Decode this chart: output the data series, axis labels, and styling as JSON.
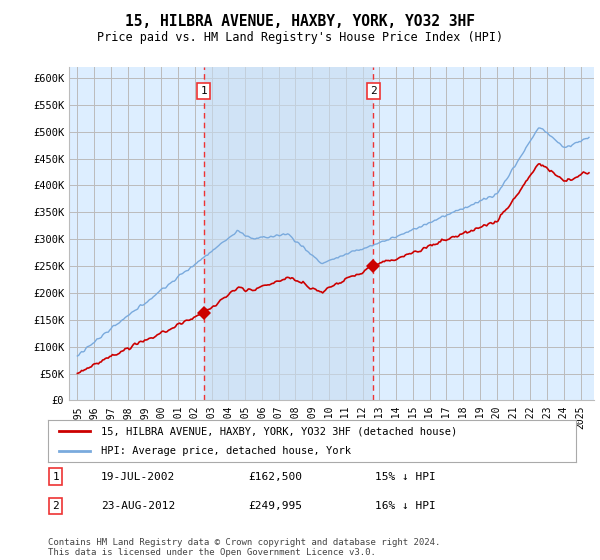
{
  "title": "15, HILBRA AVENUE, HAXBY, YORK, YO32 3HF",
  "subtitle": "Price paid vs. HM Land Registry's House Price Index (HPI)",
  "property_label": "15, HILBRA AVENUE, HAXBY, YORK, YO32 3HF (detached house)",
  "hpi_label": "HPI: Average price, detached house, York",
  "footnote": "Contains HM Land Registry data © Crown copyright and database right 2024.\nThis data is licensed under the Open Government Licence v3.0.",
  "sale1_date": "19-JUL-2002",
  "sale1_price": 162500,
  "sale1_label": "£162,500",
  "sale1_pct": "15% ↓ HPI",
  "sale2_date": "23-AUG-2012",
  "sale2_price": 249995,
  "sale2_label": "£249,995",
  "sale2_pct": "16% ↓ HPI",
  "sale1_year": 2002.54,
  "sale2_year": 2012.64,
  "hpi_color": "#7aaadd",
  "price_color": "#cc0000",
  "dashed_color": "#ee3333",
  "bg_color": "#ddeeff",
  "shade_color": "#ddeeff",
  "grid_color": "#bbbbbb",
  "ylim_min": 0,
  "ylim_max": 620000,
  "ytick_vals": [
    0,
    50000,
    100000,
    150000,
    200000,
    250000,
    300000,
    350000,
    400000,
    450000,
    500000,
    550000,
    600000
  ],
  "ytick_labels": [
    "£0",
    "£50K",
    "£100K",
    "£150K",
    "£200K",
    "£250K",
    "£300K",
    "£350K",
    "£400K",
    "£450K",
    "£500K",
    "£550K",
    "£600K"
  ],
  "xmin": 1994.5,
  "xmax": 2025.8,
  "xtick_vals": [
    1995,
    1996,
    1997,
    1998,
    1999,
    2000,
    2001,
    2002,
    2003,
    2004,
    2005,
    2006,
    2007,
    2008,
    2009,
    2010,
    2011,
    2012,
    2013,
    2014,
    2015,
    2016,
    2017,
    2018,
    2019,
    2020,
    2021,
    2022,
    2023,
    2024,
    2025
  ],
  "xtick_labels": [
    "1995",
    "1996",
    "1997",
    "1998",
    "1999",
    "2000",
    "2001",
    "2002",
    "2003",
    "2004",
    "2005",
    "2006",
    "2007",
    "2008",
    "2009",
    "2010",
    "2011",
    "2012",
    "2013",
    "2014",
    "2015",
    "2016",
    "2017",
    "2018",
    "2019",
    "2020",
    "2021",
    "2022",
    "2023",
    "2024",
    "2025"
  ]
}
